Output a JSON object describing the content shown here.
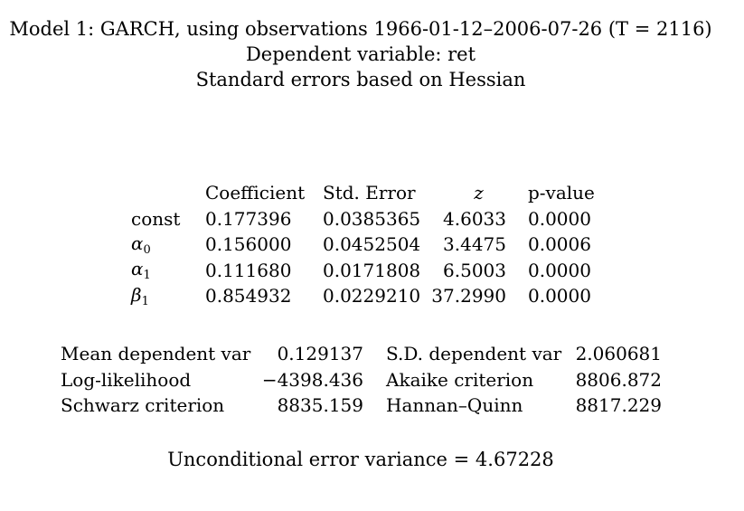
{
  "header": {
    "line1": "Model 1: GARCH, using observations 1966-01-12–2006-07-26 (T = 2116)",
    "line2": "Dependent variable: ret",
    "line3": "Standard errors based on Hessian"
  },
  "coefficients": {
    "headers": [
      "",
      "Coefficient",
      "Std. Error",
      "z",
      "p-value"
    ],
    "rows": [
      {
        "name": "const",
        "coef": "0.177396",
        "se": "0.0385365",
        "z": "4.6033",
        "p": "0.0000"
      },
      {
        "name": "α0",
        "greek": "α",
        "sub": "0",
        "coef": "0.156000",
        "se": "0.0452504",
        "z": "3.4475",
        "p": "0.0006"
      },
      {
        "name": "α1",
        "greek": "α",
        "sub": "1",
        "coef": "0.111680",
        "se": "0.0171808",
        "z": "6.5003",
        "p": "0.0000"
      },
      {
        "name": "β1",
        "greek": "β",
        "sub": "1",
        "coef": "0.854932",
        "se": "0.0229210",
        "z": "37.2990",
        "p": "0.0000"
      }
    ]
  },
  "stats": [
    {
      "label1": "Mean dependent var",
      "value1": "0.129137",
      "label2": "S.D. dependent var",
      "value2": "2.060681"
    },
    {
      "label1": "Log-likelihood",
      "value1": "−4398.436",
      "label2": "Akaike criterion",
      "value2": "8806.872"
    },
    {
      "label1": "Schwarz criterion",
      "value1": "8835.159",
      "label2": "Hannan–Quinn",
      "value2": "8817.229"
    }
  ],
  "footer": "Unconditional error variance = 4.67228"
}
